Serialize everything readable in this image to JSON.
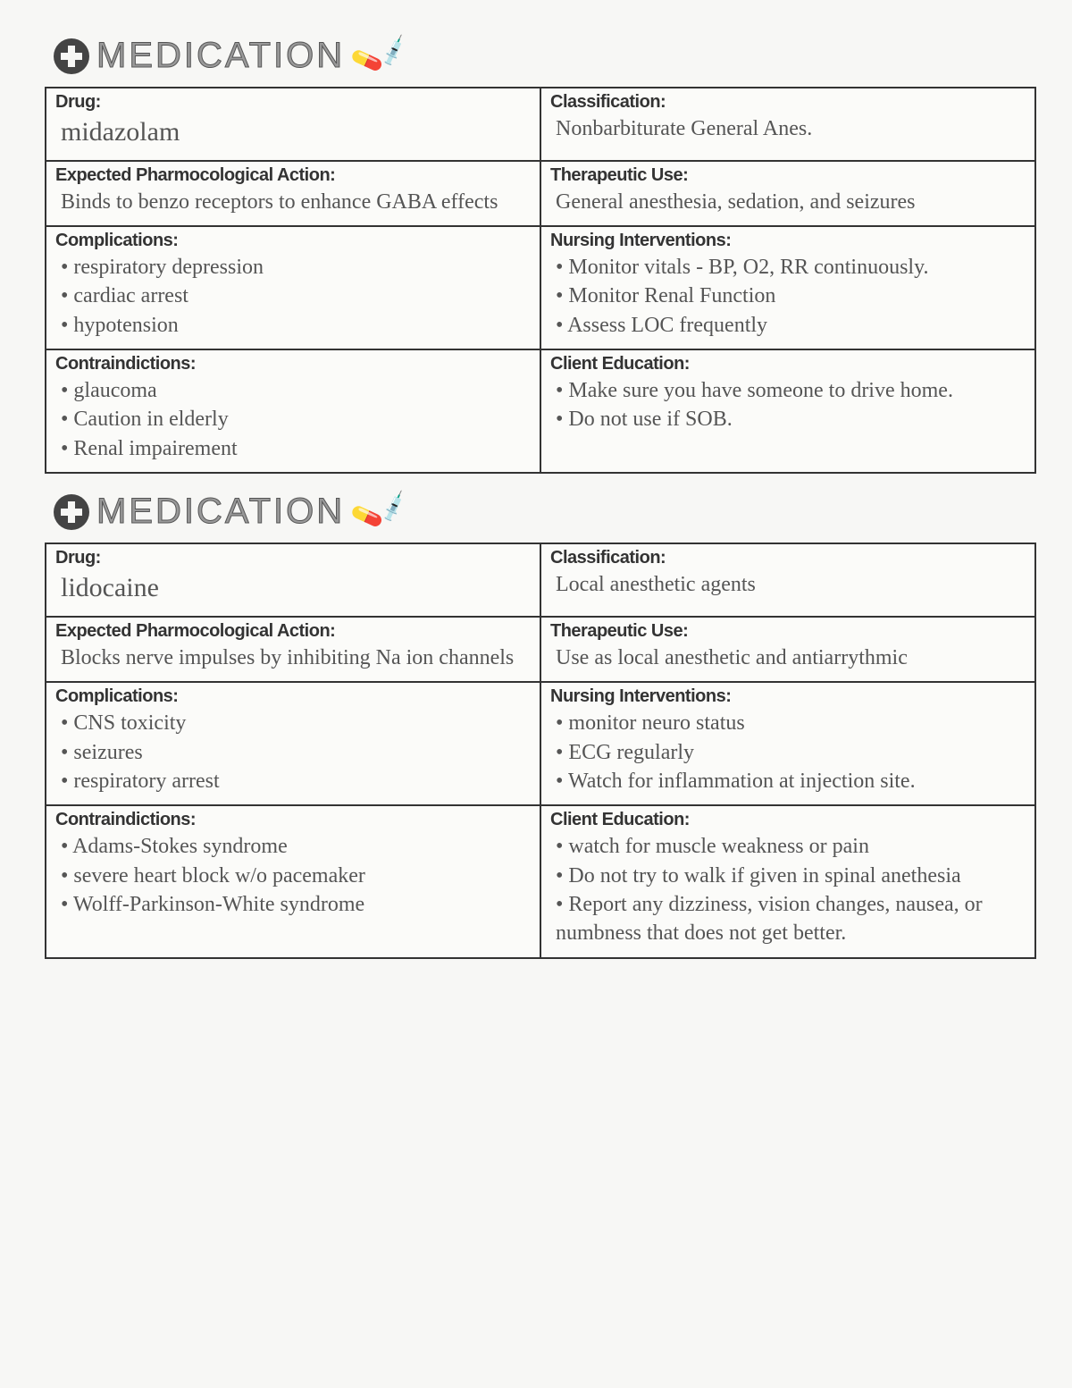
{
  "header_text": "MEDICATION",
  "labels": {
    "drug": "Drug:",
    "classification": "Classification:",
    "action": "Expected Pharmocological Action:",
    "use": "Therapeutic Use:",
    "complications": "Complications:",
    "nursing": "Nursing Interventions:",
    "contra": "Contraindictions:",
    "education": "Client Education:"
  },
  "card1": {
    "drug": "midazolam",
    "classification": "Nonbarbiturate General Anes.",
    "action": "Binds to benzo receptors to enhance GABA effects",
    "use": "General anesthesia, sedation, and seizures",
    "complications": "• respiratory depression\n• cardiac arrest\n• hypotension",
    "nursing": "• Monitor vitals - BP, O2, RR continuously.\n• Monitor Renal Function\n• Assess LOC frequently",
    "contra": "• glaucoma\n• Caution in elderly\n• Renal impairement",
    "education": "• Make sure you have someone to drive home.\n• Do not use if SOB."
  },
  "card2": {
    "drug": "lidocaine",
    "classification": "Local anesthetic agents",
    "action": "Blocks nerve impulses by inhibiting Na ion channels",
    "use": "Use as local anesthetic and antiarrythmic",
    "complications": "• CNS toxicity\n• seizures\n• respiratory arrest",
    "nursing": "• monitor neuro status\n• ECG regularly\n• Watch for inflammation at injection site.",
    "contra": "• Adams-Stokes syndrome\n• severe heart block w/o pacemaker\n• Wolff-Parkinson-White syndrome",
    "education": "• watch for muscle weakness or pain\n• Do not try to walk if given in spinal anethesia\n• Report any dizziness, vision changes, nausea, or numbness that does not get better."
  }
}
